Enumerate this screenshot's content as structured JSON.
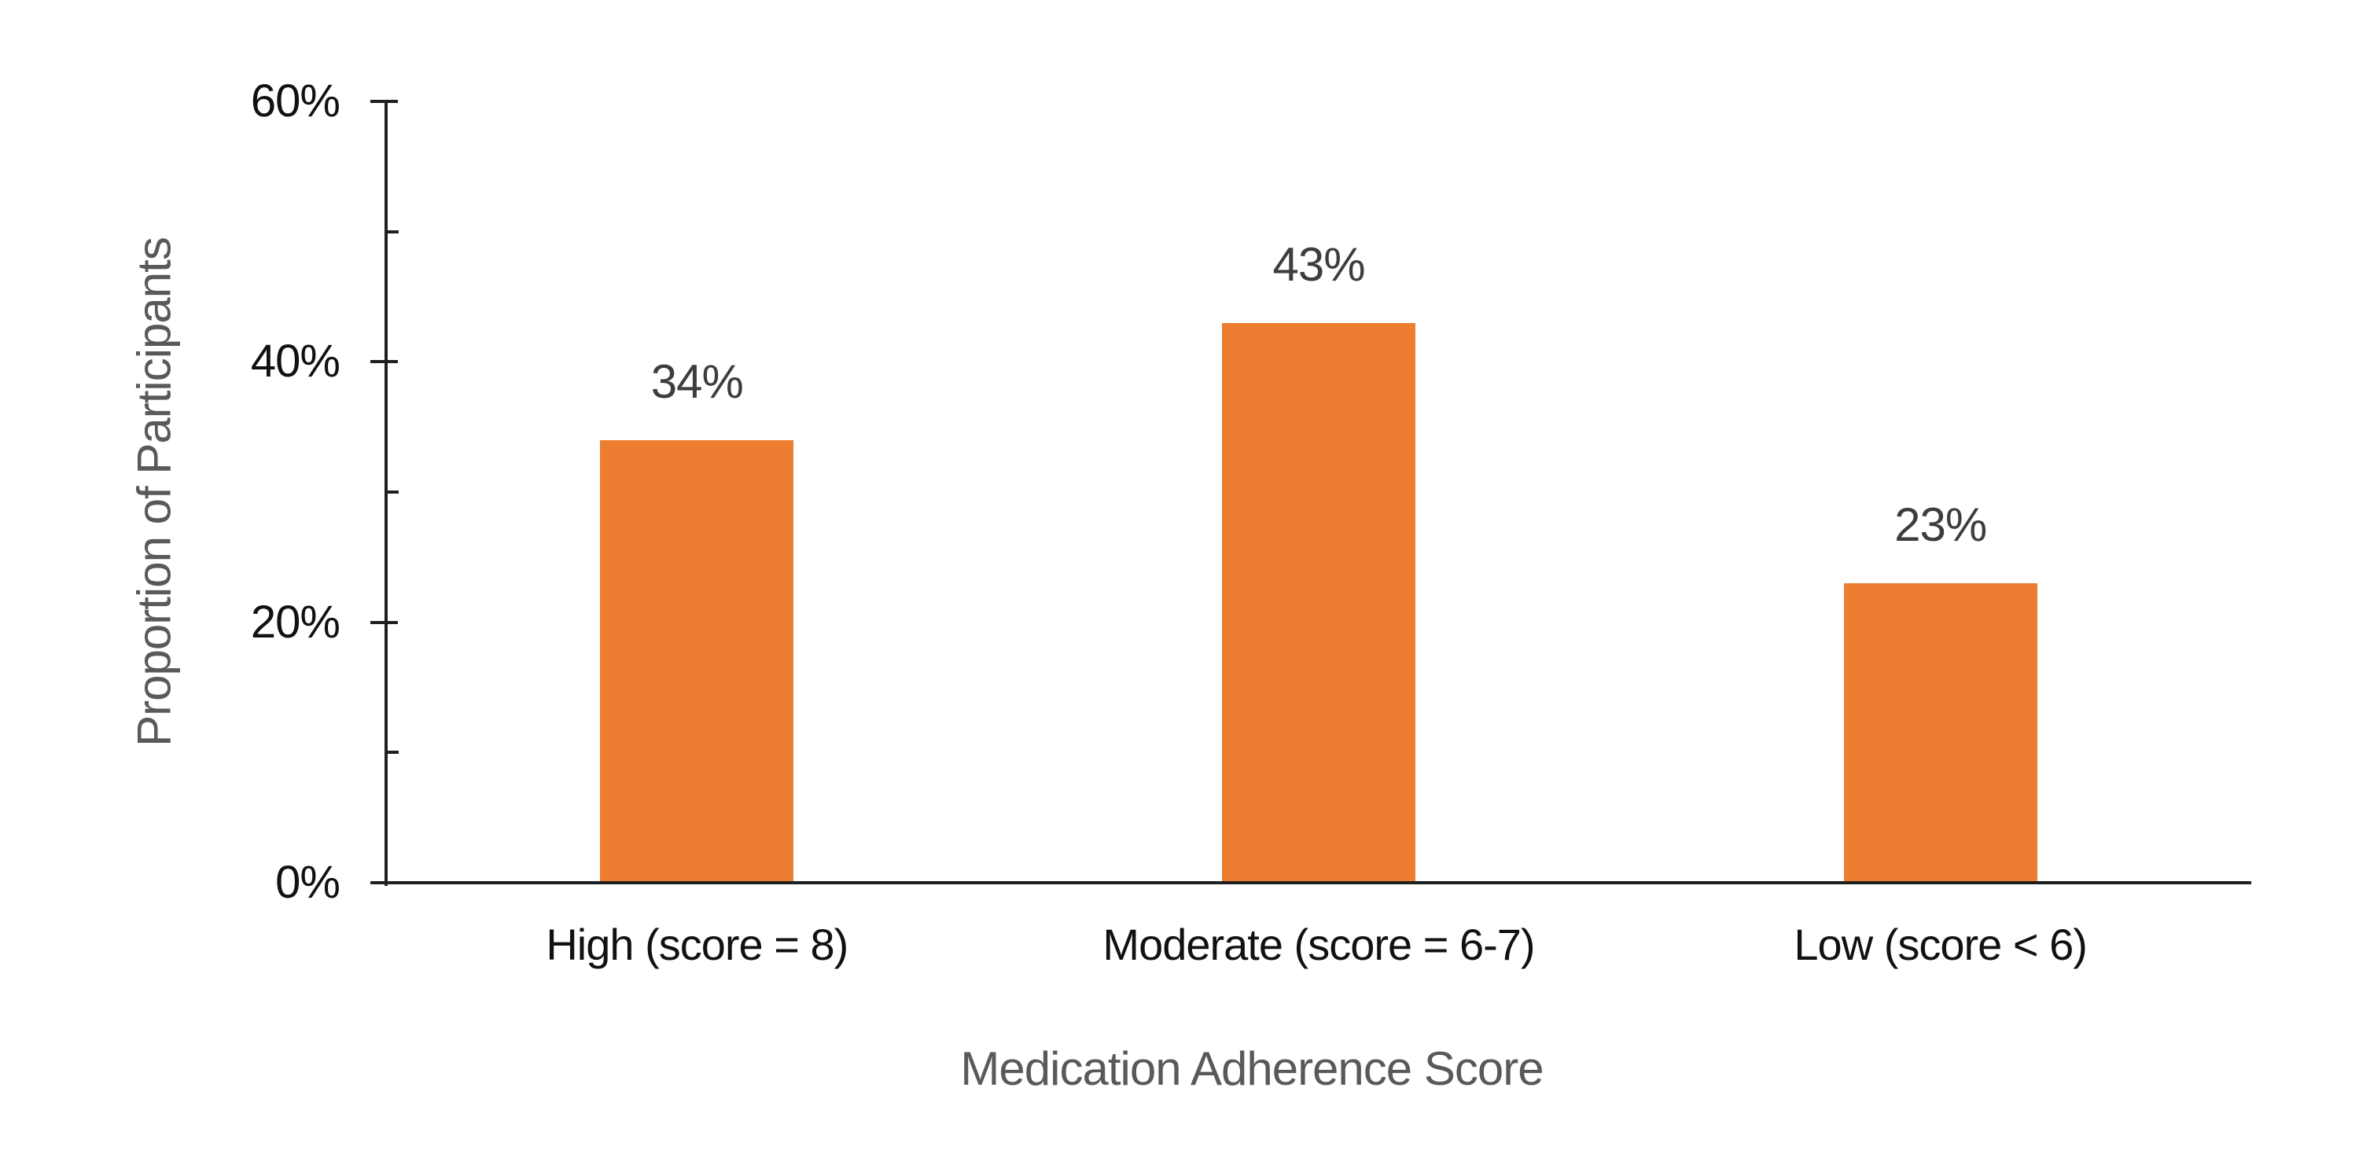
{
  "chart_data": {
    "type": "bar",
    "title": "",
    "xlabel": "Medication Adherence Score",
    "ylabel": "Proportion of Participants",
    "categories": [
      "High (score = 8)",
      "Moderate (score = 6-7)",
      "Low (score < 6)"
    ],
    "series": [
      {
        "name": "Proportion of Participants",
        "values": [
          34,
          43,
          23
        ]
      }
    ],
    "data_labels": [
      "34%",
      "43%",
      "23%"
    ],
    "ylim": [
      0,
      60
    ],
    "yticks": [
      {
        "value": 0,
        "label": "0%",
        "major": true
      },
      {
        "value": 10,
        "label": "",
        "major": false
      },
      {
        "value": 20,
        "label": "20%",
        "major": true
      },
      {
        "value": 30,
        "label": "",
        "major": false
      },
      {
        "value": 40,
        "label": "40%",
        "major": true
      },
      {
        "value": 50,
        "label": "",
        "major": false
      },
      {
        "value": 60,
        "label": "60%",
        "major": true
      }
    ],
    "grid": false,
    "legend_position": "none",
    "colors": {
      "bar": "#ED7D31",
      "axis_line": "#1f1f1f",
      "tick_label": "#111111",
      "category_label": "#111111",
      "data_label": "#3d3d3d",
      "axis_title": "#595959",
      "background": "#ffffff"
    }
  }
}
